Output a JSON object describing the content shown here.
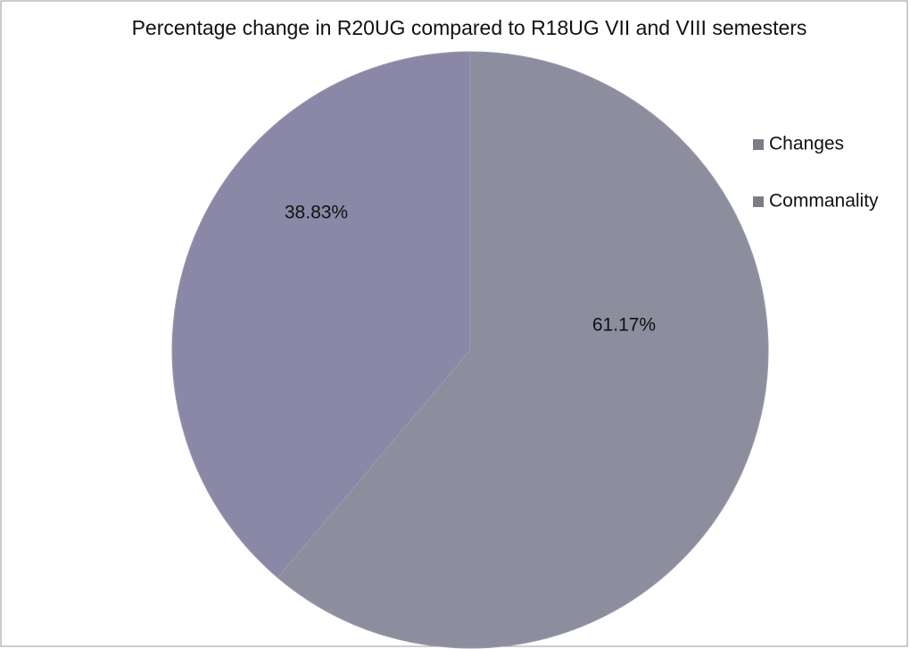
{
  "chart_data": {
    "type": "pie",
    "title": "Percentage change in R20UG  compared to R18UG VII and VIII semesters",
    "categories": [
      "Changes",
      "Commanality"
    ],
    "values": [
      38.83,
      61.17
    ],
    "value_labels": [
      "38.83%",
      "61.17%"
    ],
    "colors": [
      "#8a88a6",
      "#8c8e9e"
    ],
    "legend": "right"
  }
}
